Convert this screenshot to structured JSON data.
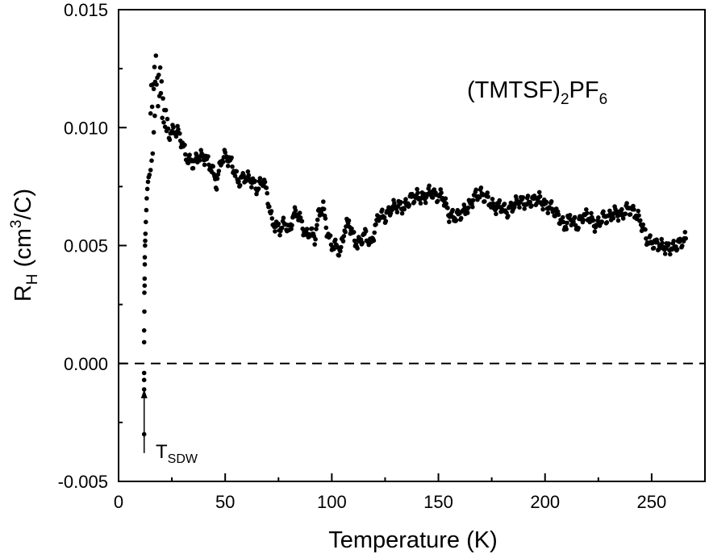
{
  "chart_data": {
    "type": "scatter",
    "xlabel": "Temperature (K)",
    "ylabel_main": "R",
    "ylabel_sub": "H",
    "ylabel_rest_a": " (cm",
    "ylabel_sup": "3",
    "ylabel_rest_b": "/C)",
    "xlim": [
      0,
      275
    ],
    "ylim": [
      -0.005,
      0.015
    ],
    "x_ticks": [
      0,
      50,
      100,
      150,
      200,
      250
    ],
    "x_tick_labels": [
      "0",
      "50",
      "100",
      "150",
      "200",
      "250"
    ],
    "y_ticks": [
      -0.005,
      0.0,
      0.005,
      0.01,
      0.015
    ],
    "y_tick_labels": [
      "-0.005",
      "0.000",
      "0.005",
      "0.010",
      "0.015"
    ],
    "compound_label": {
      "part1": "(TMTSF)",
      "sub1": "2",
      "part2": "PF",
      "sub2": "6"
    },
    "reference_line": {
      "y": 0.0,
      "style": "dashed"
    },
    "annotation": {
      "main": "T",
      "sub": "SDW",
      "arrow_x": 12,
      "arrow_from_y": -0.0038,
      "arrow_to_y": -0.0011
    },
    "marker_color": "#000000",
    "grid": false,
    "legend": "none",
    "series": [
      {
        "x_step": 0.35,
        "x": [
          12,
          12,
          12,
          12,
          12,
          12,
          12.1,
          12.1,
          12.2,
          12.2,
          12.3,
          12.3,
          12.4,
          12.5,
          12.6,
          12.8,
          13,
          13.2,
          13.5,
          13.8,
          14.1,
          14.5,
          15,
          15.5,
          16,
          16.5,
          17
        ],
        "y": [
          -0.003,
          -0.0011,
          -0.0007,
          -0.0004,
          0.0009,
          0.0014,
          0.0022,
          0.003,
          0.0033,
          0.0036,
          0.0042,
          0.0045,
          0.005,
          0.0052,
          0.0055,
          0.006,
          0.0065,
          0.007,
          0.0074,
          0.0077,
          0.0079,
          0.008,
          0.0082,
          0.0086,
          0.0089,
          0.0098,
          0.0105
        ],
        "profile": [
          [
            15.0,
            0.0112
          ],
          [
            16.5,
            0.0118
          ],
          [
            17.5,
            0.0125
          ],
          [
            18.5,
            0.0116
          ],
          [
            19.5,
            0.012
          ],
          [
            20.5,
            0.011
          ],
          [
            21.5,
            0.0106
          ],
          [
            22.5,
            0.01
          ],
          [
            24,
            0.0097
          ],
          [
            26,
            0.0099
          ],
          [
            28,
            0.0098
          ],
          [
            30,
            0.0093
          ],
          [
            32,
            0.0087
          ],
          [
            35,
            0.0085
          ],
          [
            38,
            0.0088
          ],
          [
            41,
            0.0087
          ],
          [
            44,
            0.0082
          ],
          [
            46,
            0.0076
          ],
          [
            48,
            0.0086
          ],
          [
            50,
            0.0088
          ],
          [
            53,
            0.0085
          ],
          [
            56,
            0.0077
          ],
          [
            59,
            0.0079
          ],
          [
            62,
            0.0078
          ],
          [
            65,
            0.0074
          ],
          [
            68,
            0.0078
          ],
          [
            70,
            0.007
          ],
          [
            72,
            0.006
          ],
          [
            74,
            0.0058
          ],
          [
            76,
            0.0057
          ],
          [
            78,
            0.006
          ],
          [
            80,
            0.0056
          ],
          [
            82,
            0.0063
          ],
          [
            84,
            0.0064
          ],
          [
            86,
            0.0059
          ],
          [
            88,
            0.0054
          ],
          [
            90,
            0.0056
          ],
          [
            92,
            0.0053
          ],
          [
            94,
            0.0064
          ],
          [
            96,
            0.0066
          ],
          [
            98,
            0.0055
          ],
          [
            100,
            0.005
          ],
          [
            102,
            0.005
          ],
          [
            104,
            0.0047
          ],
          [
            106,
            0.0057
          ],
          [
            108,
            0.006
          ],
          [
            110,
            0.0054
          ],
          [
            112,
            0.005
          ],
          [
            114,
            0.0053
          ],
          [
            116,
            0.0055
          ],
          [
            118,
            0.005
          ],
          [
            120,
            0.0056
          ],
          [
            122,
            0.0063
          ],
          [
            125,
            0.0062
          ],
          [
            128,
            0.0066
          ],
          [
            131,
            0.0067
          ],
          [
            134,
            0.0066
          ],
          [
            137,
            0.007
          ],
          [
            140,
            0.0071
          ],
          [
            143,
            0.007
          ],
          [
            146,
            0.0073
          ],
          [
            149,
            0.0071
          ],
          [
            152,
            0.0071
          ],
          [
            155,
            0.0063
          ],
          [
            158,
            0.0062
          ],
          [
            161,
            0.0064
          ],
          [
            164,
            0.0066
          ],
          [
            167,
            0.0071
          ],
          [
            170,
            0.0072
          ],
          [
            173,
            0.007
          ],
          [
            176,
            0.0066
          ],
          [
            179,
            0.0067
          ],
          [
            182,
            0.0064
          ],
          [
            185,
            0.0067
          ],
          [
            188,
            0.0069
          ],
          [
            191,
            0.0068
          ],
          [
            194,
            0.0069
          ],
          [
            197,
            0.007
          ],
          [
            200,
            0.0067
          ],
          [
            203,
            0.0066
          ],
          [
            206,
            0.0063
          ],
          [
            209,
            0.0058
          ],
          [
            212,
            0.0062
          ],
          [
            215,
            0.0058
          ],
          [
            218,
            0.0063
          ],
          [
            221,
            0.0062
          ],
          [
            224,
            0.0058
          ],
          [
            227,
            0.0062
          ],
          [
            230,
            0.0062
          ],
          [
            233,
            0.0064
          ],
          [
            236,
            0.0063
          ],
          [
            239,
            0.0066
          ],
          [
            242,
            0.0064
          ],
          [
            245,
            0.006
          ],
          [
            248,
            0.0052
          ],
          [
            251,
            0.0051
          ],
          [
            254,
            0.005
          ],
          [
            257,
            0.0049
          ],
          [
            260,
            0.0049
          ],
          [
            263,
            0.0051
          ],
          [
            266,
            0.0053
          ]
        ]
      }
    ]
  }
}
